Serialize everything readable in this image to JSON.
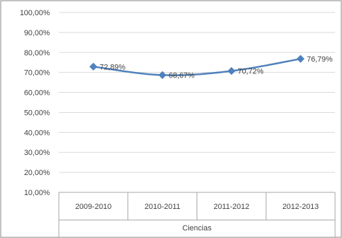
{
  "chart_data": {
    "type": "line",
    "categories": [
      "2009-2010",
      "2010-2011",
      "2011-2012",
      "2012-2013"
    ],
    "group_label": "Ciencias",
    "series": [
      {
        "values": [
          72.89,
          68.67,
          70.72,
          76.79
        ]
      }
    ],
    "data_labels": [
      "72,89%",
      "68,67%",
      "70,72%",
      "76,79%"
    ],
    "y_ticks": [
      "10,00%",
      "20,00%",
      "30,00%",
      "40,00%",
      "50,00%",
      "60,00%",
      "70,00%",
      "80,00%",
      "90,00%",
      "100,00%"
    ],
    "ylim": [
      10,
      100
    ],
    "grid": "horizontal",
    "legend": "none",
    "colors": {
      "line": "#4f81bd",
      "marker": "#4f81bd",
      "grid": "#d9d9d9",
      "axis": "#a6a6a6",
      "border": "#868686",
      "text": "#404040"
    }
  }
}
